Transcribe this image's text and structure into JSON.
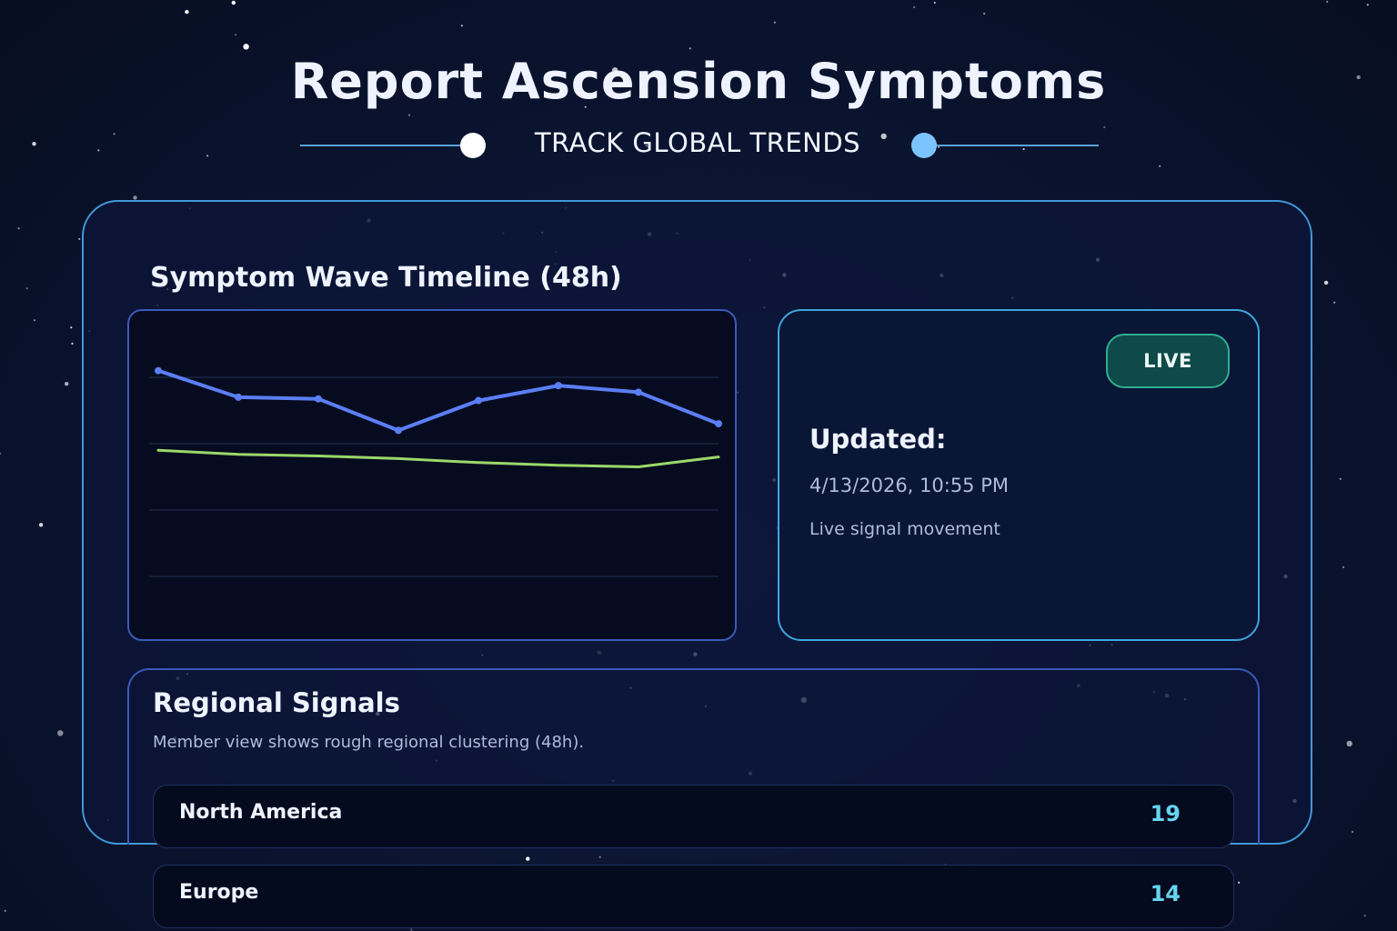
{
  "header": {
    "title": "Report Ascension Symptoms",
    "subtitle": "TRACK GLOBAL TRENDS"
  },
  "timeline": {
    "title": "Symptom Wave Timeline (48h)"
  },
  "chart_data": {
    "type": "line",
    "x": [
      1,
      2,
      3,
      4,
      5,
      6,
      7,
      8
    ],
    "ylim": [
      0,
      100
    ],
    "grid": true,
    "series": [
      {
        "color": "#5b7ef5",
        "markers": true,
        "values": [
          82,
          74,
          73.5,
          64,
          73,
          77.5,
          75.5,
          66
        ]
      },
      {
        "color": "#9bd86a",
        "markers": false,
        "values": [
          58,
          56.8,
          56.3,
          55.5,
          54.3,
          53.5,
          53,
          56
        ]
      }
    ]
  },
  "status": {
    "badge": "LIVE",
    "updated_label": "Updated:",
    "updated_value": "4/13/2026, 10:55 PM",
    "note": "Live signal movement"
  },
  "regional": {
    "title": "Regional Signals",
    "description": "Member view shows rough regional clustering (48h).",
    "rows": [
      {
        "name": "North America",
        "count": "19"
      },
      {
        "name": "Europe",
        "count": "14"
      }
    ]
  },
  "colors": {
    "accent": "#3ea6dc",
    "live_badge": "#0f4a4a",
    "count_text": "#66d4f0"
  }
}
